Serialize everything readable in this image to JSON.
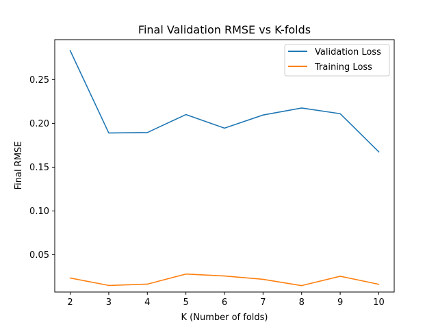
{
  "chart_data": {
    "type": "line",
    "title": "Final Validation RMSE vs K-folds",
    "xlabel": "K (Number of folds)",
    "ylabel": "Final RMSE",
    "x": [
      2,
      3,
      4,
      5,
      6,
      7,
      8,
      9,
      10
    ],
    "xticks": [
      "2",
      "3",
      "4",
      "5",
      "6",
      "7",
      "8",
      "9",
      "10"
    ],
    "yticks": [
      "0.05",
      "0.10",
      "0.15",
      "0.20",
      "0.25"
    ],
    "xlim": [
      1.6,
      10.4
    ],
    "ylim": [
      0.0075,
      0.2955
    ],
    "grid": false,
    "legend_position": "top-right",
    "series": [
      {
        "name": "Validation Loss",
        "color": "#1f77b4",
        "values": [
          0.283,
          0.189,
          0.1895,
          0.21,
          0.1945,
          0.2095,
          0.2175,
          0.211,
          0.1675
        ]
      },
      {
        "name": "Training Loss",
        "color": "#ff7f0e",
        "values": [
          0.0235,
          0.015,
          0.0165,
          0.028,
          0.0258,
          0.022,
          0.0148,
          0.0255,
          0.0163
        ]
      }
    ]
  }
}
